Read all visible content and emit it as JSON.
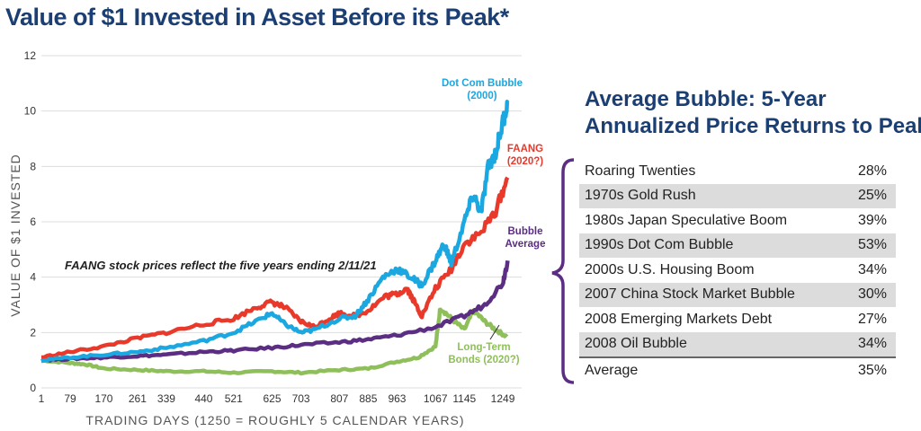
{
  "title": "Value of $1 Invested in Asset Before its Peak*",
  "table": {
    "title_line1": "Average Bubble: 5-Year",
    "title_line2": "Annualized Price Returns to Peak*",
    "rows": [
      {
        "label": "Roaring Twenties",
        "value": "28%"
      },
      {
        "label": "1970s Gold Rush",
        "value": "25%"
      },
      {
        "label": "1980s Japan Speculative Boom",
        "value": "39%"
      },
      {
        "label": "1990s Dot Com Bubble",
        "value": "53%"
      },
      {
        "label": "2000s U.S. Housing Boom",
        "value": "34%"
      },
      {
        "label": "2007 China Stock Market Bubble",
        "value": "30%"
      },
      {
        "label": "2008 Emerging Markets Debt",
        "value": "27%"
      },
      {
        "label": "2008 Oil Bubble",
        "value": "34%"
      }
    ],
    "average": {
      "label": "Average",
      "value": "35%"
    },
    "bracket_color": "#5b2d83"
  },
  "chart_data": {
    "type": "line",
    "title": "Value of $1 Invested in Asset Before its Peak*",
    "xlabel": "TRADING DAYS (1250 = ROUGHLY 5 CALENDAR YEARS)",
    "ylabel": "VALUE OF $1 INVESTED",
    "xlim": [
      1,
      1300
    ],
    "ylim": [
      0,
      12
    ],
    "x_ticks": [
      1,
      79,
      170,
      261,
      339,
      440,
      521,
      625,
      703,
      807,
      885,
      963,
      1067,
      1145,
      1249
    ],
    "y_ticks": [
      0,
      2,
      4,
      6,
      8,
      10,
      12
    ],
    "grid": true,
    "note": "FAANG stock prices reflect the five years ending 2/11/21",
    "series": [
      {
        "name": "Long-Term Bonds (2020?)",
        "label_lines": [
          "Long-Term",
          "Bonds (2020?)"
        ],
        "color": "#8fbf5a",
        "x": [
          1,
          79,
          120,
          170,
          261,
          339,
          440,
          521,
          625,
          703,
          807,
          885,
          963,
          1020,
          1067,
          1080,
          1110,
          1145,
          1170,
          1200,
          1230,
          1260
        ],
        "y": [
          1.0,
          0.9,
          0.85,
          0.7,
          0.65,
          0.6,
          0.6,
          0.55,
          0.6,
          0.55,
          0.65,
          0.7,
          0.95,
          1.1,
          1.5,
          2.9,
          2.5,
          2.1,
          2.8,
          2.4,
          2.1,
          1.85
        ]
      },
      {
        "name": "Bubble Average",
        "label_lines": [
          "Bubble",
          "Average"
        ],
        "color": "#5b2d83",
        "x": [
          1,
          79,
          170,
          261,
          339,
          440,
          521,
          625,
          703,
          807,
          885,
          963,
          1067,
          1145,
          1200,
          1249,
          1262
        ],
        "y": [
          1.0,
          1.05,
          1.1,
          1.15,
          1.2,
          1.3,
          1.35,
          1.45,
          1.55,
          1.65,
          1.75,
          1.9,
          2.2,
          2.6,
          3.0,
          3.8,
          4.6
        ]
      },
      {
        "name": "FAANG (2020?)",
        "label_lines": [
          "FAANG",
          "(2020?)"
        ],
        "color": "#e8392b",
        "x": [
          1,
          79,
          170,
          261,
          339,
          440,
          521,
          580,
          625,
          660,
          703,
          740,
          780,
          807,
          850,
          885,
          930,
          963,
          990,
          1010,
          1030,
          1067,
          1110,
          1145,
          1190,
          1230,
          1262
        ],
        "y": [
          1.1,
          1.3,
          1.5,
          1.8,
          2.0,
          2.3,
          2.5,
          2.9,
          3.1,
          2.9,
          2.4,
          2.2,
          2.5,
          2.7,
          2.6,
          2.8,
          3.3,
          3.4,
          3.6,
          3.1,
          2.6,
          3.6,
          4.3,
          5.2,
          5.6,
          6.4,
          7.6
        ]
      },
      {
        "name": "Dot Com Bubble (2000)",
        "label_lines": [
          "Dot Com Bubble",
          "(2000)"
        ],
        "color": "#1ba7e0",
        "x": [
          1,
          79,
          170,
          261,
          339,
          440,
          521,
          580,
          625,
          660,
          703,
          740,
          807,
          850,
          885,
          925,
          963,
          1000,
          1030,
          1067,
          1090,
          1110,
          1145,
          1170,
          1190,
          1210,
          1230,
          1249,
          1262
        ],
        "y": [
          1.0,
          1.1,
          1.2,
          1.3,
          1.45,
          1.7,
          2.0,
          2.4,
          2.7,
          2.3,
          2.0,
          2.1,
          2.5,
          2.6,
          3.2,
          4.0,
          4.3,
          4.0,
          3.7,
          4.6,
          5.2,
          4.5,
          6.0,
          7.0,
          6.3,
          8.0,
          8.5,
          9.6,
          10.3
        ]
      }
    ]
  }
}
